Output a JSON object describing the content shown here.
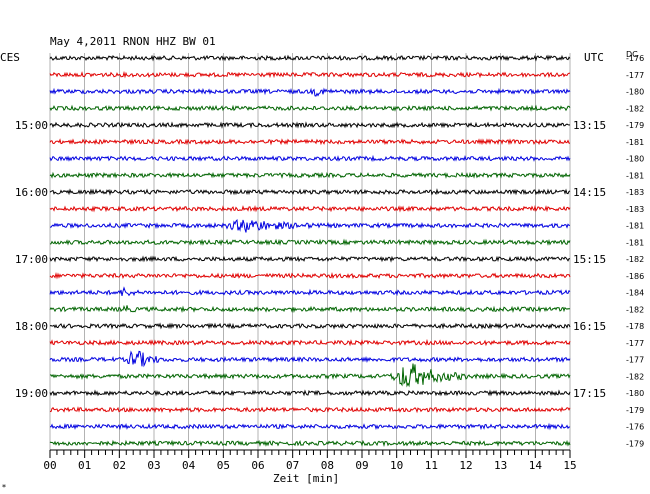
{
  "header": {
    "title": "May 4,2011   RNON HHZ BW 01",
    "left_tz": "CES",
    "right_tz": "UTC",
    "dc_label": "DC"
  },
  "chart_data": {
    "type": "line",
    "title": "May 4,2011   RNON HHZ BW 01",
    "xlabel": "Zeit [min]",
    "xlim": [
      0,
      15
    ],
    "x_ticks": [
      "00",
      "01",
      "02",
      "03",
      "04",
      "05",
      "06",
      "07",
      "08",
      "09",
      "10",
      "11",
      "12",
      "13",
      "14",
      "15"
    ],
    "grid": true,
    "trace_colors": [
      "#000000",
      "#e00000",
      "#0000e0",
      "#006400"
    ],
    "left_times": [
      "15:00",
      "16:00",
      "17:00",
      "18:00",
      "19:00"
    ],
    "right_times": [
      "13:15",
      "14:15",
      "15:15",
      "16:15",
      "17:15"
    ],
    "time_label_every_rows": 4,
    "time_label_first_row": 4,
    "dc_offsets": [
      -176,
      -177,
      -180,
      -182,
      -179,
      -181,
      -180,
      -181,
      -183,
      -183,
      -181,
      -181,
      -182,
      -186,
      -184,
      -182,
      -178,
      -177,
      -177,
      -182,
      -180,
      -179,
      -176,
      -179
    ],
    "events": [
      {
        "row": 10,
        "start_min": 5.0,
        "end_min": 7.6,
        "amplitude": 0.7
      },
      {
        "row": 14,
        "start_min": 2.0,
        "end_min": 2.5,
        "amplitude": 0.5
      },
      {
        "row": 15,
        "start_min": 2.0,
        "end_min": 2.5,
        "amplitude": 0.45
      },
      {
        "row": 18,
        "start_min": 2.2,
        "end_min": 3.2,
        "amplitude": 1.3
      },
      {
        "row": 19,
        "start_min": 9.8,
        "end_min": 12.0,
        "amplitude": 1.6
      },
      {
        "row": 2,
        "start_min": 7.5,
        "end_min": 8.2,
        "amplitude": 0.35
      }
    ]
  },
  "footer": {
    "note": "*"
  }
}
